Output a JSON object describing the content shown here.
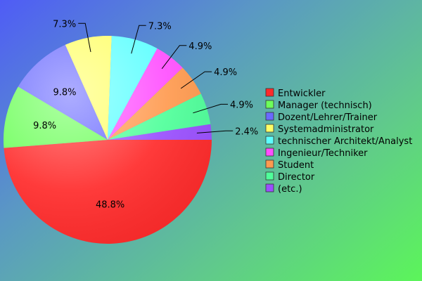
{
  "chart_data": {
    "type": "pie",
    "title": "",
    "legend_position": "right",
    "slices": [
      {
        "label": "Entwickler",
        "value": 48.8,
        "display": "48.8%",
        "color": "#ff2a2a"
      },
      {
        "label": "Manager (technisch)",
        "value": 9.8,
        "display": "9.8%",
        "color": "#6dff5a"
      },
      {
        "label": "Dozent/Lehrer/Trainer",
        "value": 9.8,
        "display": "9.8%",
        "color": "#6a6aff"
      },
      {
        "label": "Systemadministrator",
        "value": 7.3,
        "display": "7.3%",
        "color": "#ffff66"
      },
      {
        "label": "technischer Architekt/Analyst",
        "value": 7.3,
        "display": "7.3%",
        "color": "#5cffff"
      },
      {
        "label": "Ingenieur/Techniker",
        "value": 4.9,
        "display": "4.9%",
        "color": "#ff4fff"
      },
      {
        "label": "Student",
        "value": 4.9,
        "display": "4.9%",
        "color": "#ff9a4f"
      },
      {
        "label": "Director",
        "value": 4.9,
        "display": "4.9%",
        "color": "#4fff9a"
      },
      {
        "label": "(etc.)",
        "value": 2.4,
        "display": "2.4%",
        "color": "#9a4fff"
      }
    ]
  }
}
